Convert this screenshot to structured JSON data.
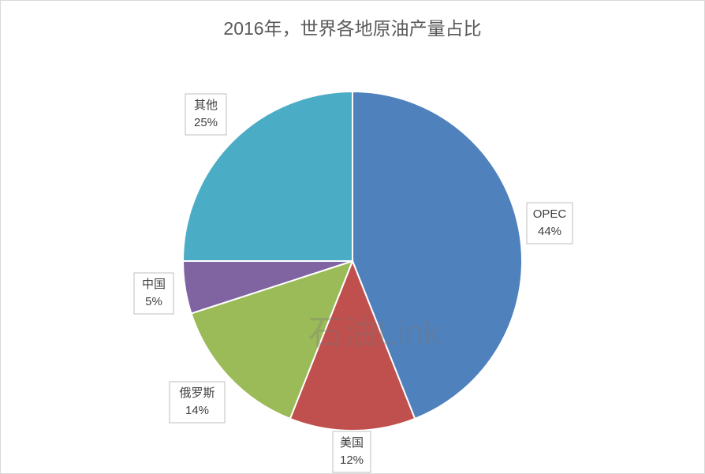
{
  "chart_data": {
    "type": "pie",
    "title": "2016年，世界各地原油产量占比",
    "categories": [
      "OPEC",
      "美国",
      "俄罗斯",
      "中国",
      "其他"
    ],
    "values": [
      44,
      12,
      14,
      5,
      25
    ],
    "value_labels": [
      "44%",
      "12%",
      "14%",
      "5%",
      "25%"
    ],
    "colors": [
      "#4f81bd",
      "#c0504d",
      "#9bbb59",
      "#8064a2",
      "#4bacc6"
    ],
    "watermark": "石油Link"
  }
}
